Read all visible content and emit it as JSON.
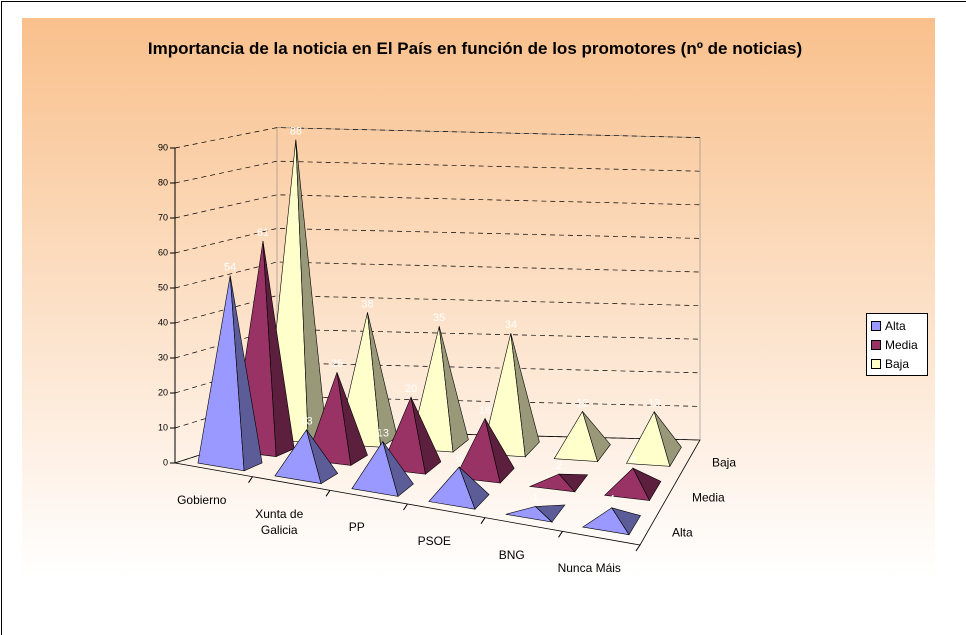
{
  "chart_data": {
    "type": "pyramid3d",
    "title": "Importancia de la noticia en El País en función de los promotores (nº de noticias)",
    "categories": [
      "Gobierno",
      "Xunta de Galicia",
      "PP",
      "PSOE",
      "BNG",
      "Nunca Máis"
    ],
    "series": [
      {
        "name": "Alta",
        "color": "#9999ff",
        "values": [
          54,
          13,
          13,
          9,
          1,
          4
        ]
      },
      {
        "name": "Media",
        "color": "#993366",
        "values": [
          61,
          25,
          20,
          16,
          2,
          6
        ]
      },
      {
        "name": "Baja",
        "color": "#ffffcc",
        "values": [
          88,
          38,
          35,
          34,
          12,
          13
        ]
      }
    ],
    "ylim": [
      0,
      90
    ],
    "yticks": [
      0,
      10,
      20,
      30,
      40,
      50,
      60,
      70,
      80,
      90
    ],
    "grid": true,
    "legend": "right"
  }
}
